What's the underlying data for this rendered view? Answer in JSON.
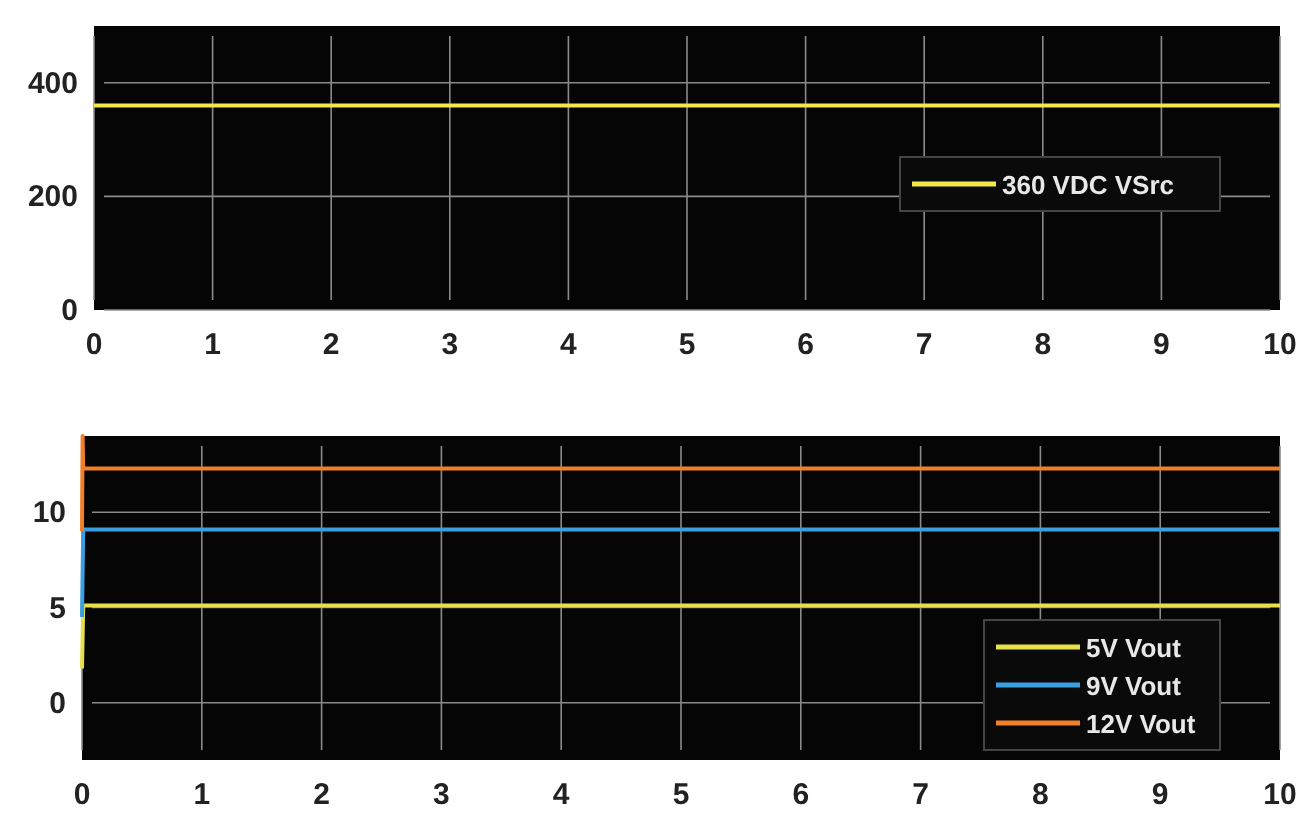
{
  "chart_data": [
    {
      "type": "line",
      "x": [
        0,
        10
      ],
      "series": [
        {
          "name": "360 VDC VSrc",
          "color": "#f2e84a",
          "values": [
            360,
            360
          ]
        }
      ],
      "xlim": [
        0,
        10
      ],
      "xticks": [
        0,
        1,
        2,
        3,
        4,
        5,
        6,
        7,
        8,
        9,
        10
      ],
      "ylim": [
        0,
        500
      ],
      "yticks": [
        0,
        200,
        400
      ],
      "grid": true,
      "legend": "right"
    },
    {
      "type": "line",
      "xlim": [
        0,
        10
      ],
      "xticks": [
        0,
        1,
        2,
        3,
        4,
        5,
        6,
        7,
        8,
        9,
        10
      ],
      "ylim": [
        -3,
        14
      ],
      "yticks": [
        0,
        5,
        10
      ],
      "grid": true,
      "legend": "bottom right",
      "series": [
        {
          "name": "5V Vout",
          "color": "#e8e04a",
          "x": [
            0,
            0.01,
            10
          ],
          "values": [
            1.8,
            5.1,
            5.1
          ]
        },
        {
          "name": "9V Vout",
          "color": "#3a9ee0",
          "x": [
            0,
            0.01,
            10
          ],
          "values": [
            4.5,
            9.1,
            9.1
          ]
        },
        {
          "name": "12V Vout",
          "color": "#f07f2a",
          "x": [
            0,
            0.005,
            0.01,
            10
          ],
          "values": [
            9,
            14,
            12.3,
            12.3
          ]
        }
      ]
    }
  ]
}
